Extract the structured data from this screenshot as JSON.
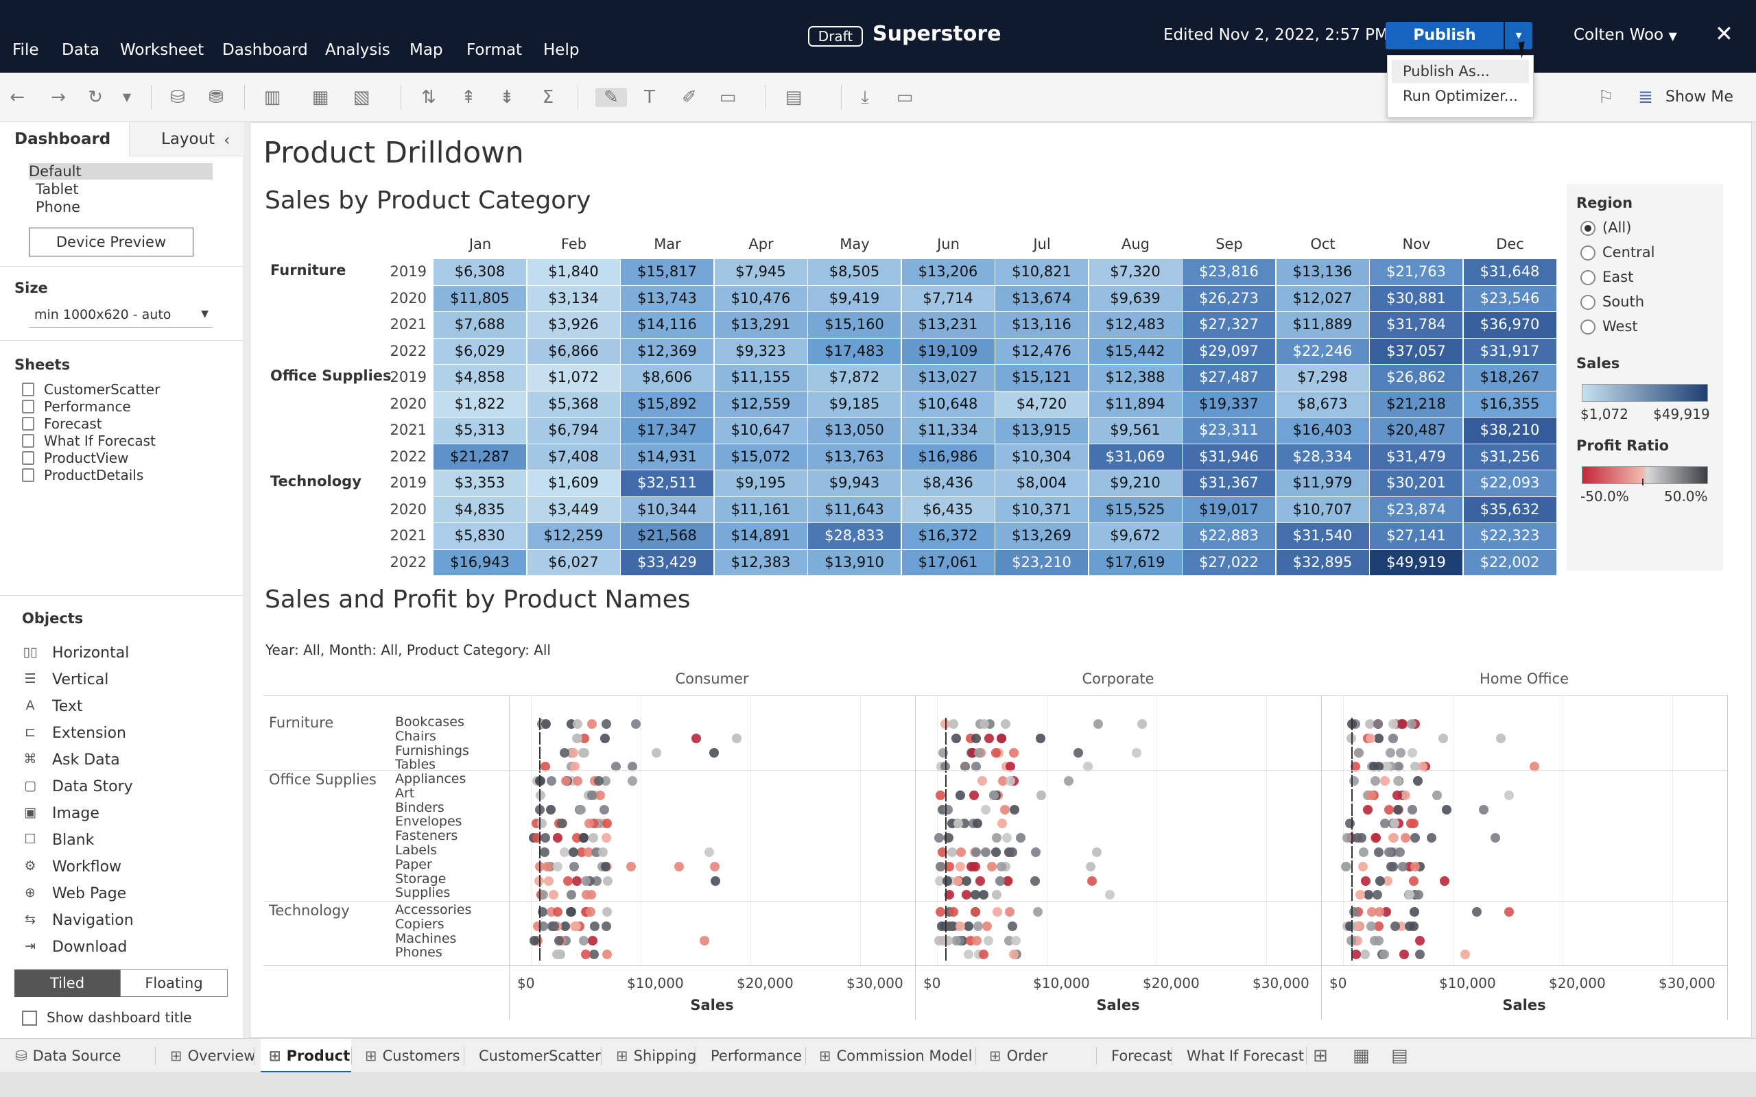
{
  "menu": [
    "File",
    "Data",
    "Worksheet",
    "Dashboard",
    "Analysis",
    "Map",
    "Format",
    "Help"
  ],
  "header": {
    "draft": "Draft",
    "title": "Superstore",
    "edited": "Edited Nov 2, 2022, 2:57 PM",
    "publish": "Publish",
    "user": "Colten Woo",
    "close": "✕"
  },
  "publish_menu": [
    "Publish As...",
    "Run Optimizer..."
  ],
  "toolbar": {
    "show_me": "Show Me"
  },
  "left": {
    "tab_dashboard": "Dashboard",
    "tab_layout": "Layout",
    "devices": [
      "Default",
      "Tablet",
      "Phone"
    ],
    "device_preview": "Device Preview",
    "size_heading": "Size",
    "size_value": "min 1000x620 - auto",
    "sheets_heading": "Sheets",
    "sheets": [
      "CustomerScatter",
      "Performance",
      "Forecast",
      "What If Forecast",
      "ProductView",
      "ProductDetails"
    ],
    "objects_heading": "Objects",
    "objects": [
      "Horizontal",
      "Vertical",
      "Text",
      "Extension",
      "Ask Data",
      "Data Story",
      "Image",
      "Blank",
      "Workflow",
      "Web Page",
      "Navigation",
      "Download"
    ],
    "tiled": "Tiled",
    "floating": "Floating",
    "show_title": "Show dashboard title"
  },
  "dashboard": {
    "title": "Product Drilldown",
    "heatmap_title": "Sales by Product Category",
    "scatter_title": "Sales and Profit by Product Names",
    "filter_text": "Year: All, Month: All, Product Category: All"
  },
  "heatmap": {
    "months": [
      "Jan",
      "Feb",
      "Mar",
      "Apr",
      "May",
      "Jun",
      "Jul",
      "Aug",
      "Sep",
      "Oct",
      "Nov",
      "Dec"
    ],
    "min": 1072,
    "max": 49919,
    "categories": [
      {
        "name": "Furniture",
        "rows": [
          {
            "year": "2019",
            "values": [
              6308,
              1840,
              15817,
              7945,
              8505,
              13206,
              10821,
              7320,
              23816,
              13136,
              21763,
              31648
            ]
          },
          {
            "year": "2020",
            "values": [
              11805,
              3134,
              13743,
              10476,
              9419,
              7714,
              13674,
              9639,
              26273,
              12027,
              30881,
              23546
            ]
          },
          {
            "year": "2021",
            "values": [
              7688,
              3926,
              14116,
              13291,
              15160,
              13231,
              13116,
              12483,
              27327,
              11889,
              31784,
              36970
            ]
          },
          {
            "year": "2022",
            "values": [
              6029,
              6866,
              12369,
              9323,
              17483,
              19109,
              12476,
              15442,
              29097,
              22246,
              37057,
              31917
            ]
          }
        ]
      },
      {
        "name": "Office Supplies",
        "rows": [
          {
            "year": "2019",
            "values": [
              4858,
              1072,
              8606,
              11155,
              7872,
              13027,
              15121,
              12388,
              27487,
              7298,
              26862,
              18267
            ]
          },
          {
            "year": "2020",
            "values": [
              1822,
              5368,
              15892,
              12559,
              9185,
              10648,
              4720,
              11894,
              19337,
              8673,
              21218,
              16355
            ]
          },
          {
            "year": "2021",
            "values": [
              5313,
              6794,
              17347,
              10647,
              13050,
              11334,
              13915,
              9561,
              23311,
              16403,
              20487,
              38210
            ]
          },
          {
            "year": "2022",
            "values": [
              21287,
              7408,
              14931,
              15072,
              13763,
              16986,
              10304,
              31069,
              31946,
              28334,
              31479,
              31256
            ]
          }
        ]
      },
      {
        "name": "Technology",
        "rows": [
          {
            "year": "2019",
            "values": [
              3353,
              1609,
              32511,
              9195,
              9943,
              8436,
              8004,
              9210,
              31367,
              11979,
              30201,
              22093
            ]
          },
          {
            "year": "2020",
            "values": [
              4835,
              3449,
              10344,
              11161,
              11643,
              6435,
              10371,
              15525,
              19017,
              10707,
              23874,
              35632
            ]
          },
          {
            "year": "2021",
            "values": [
              5830,
              12259,
              21568,
              14891,
              28833,
              16372,
              13269,
              9672,
              22883,
              31540,
              27141,
              22323
            ]
          },
          {
            "year": "2022",
            "values": [
              16943,
              6027,
              33429,
              12383,
              13910,
              17061,
              23210,
              17619,
              27022,
              32895,
              49919,
              22002
            ]
          }
        ]
      }
    ]
  },
  "legend": {
    "region_heading": "Region",
    "regions": [
      "(All)",
      "Central",
      "East",
      "South",
      "West"
    ],
    "selected_region": "(All)",
    "sales_heading": "Sales",
    "sales_min": "$1,072",
    "sales_max": "$49,919",
    "profit_heading": "Profit Ratio",
    "profit_min": "-50.0%",
    "profit_max": "50.0%"
  },
  "scatter": {
    "segments": [
      "Consumer",
      "Corporate",
      "Home Office"
    ],
    "x_ticks": [
      "$0",
      "$10,000",
      "$20,000",
      "$30,000"
    ],
    "x_label": "Sales",
    "groups": [
      {
        "category": "Furniture",
        "subs": [
          "Bookcases",
          "Chairs",
          "Furnishings",
          "Tables"
        ]
      },
      {
        "category": "Office Supplies",
        "subs": [
          "Appliances",
          "Art",
          "Binders",
          "Envelopes",
          "Fasteners",
          "Labels",
          "Paper",
          "Storage",
          "Supplies"
        ]
      },
      {
        "category": "Technology",
        "subs": [
          "Accessories",
          "Copiers",
          "Machines",
          "Phones"
        ]
      }
    ]
  },
  "tabs": [
    "Data Source",
    "Overview",
    "Product",
    "Customers",
    "CustomerScatter",
    "Shipping",
    "Performance",
    "Commission Model",
    "Order Details",
    "Forecast",
    "What If Forecast"
  ],
  "active_tab": "Product",
  "colors": {
    "topbar": "#0f1a2e",
    "publish": "#1565c0",
    "heat_low": "#c6e0ef",
    "heat_high": "#1e3f73",
    "profit_neg": "#c2283a",
    "profit_pos": "#3b3f45"
  }
}
